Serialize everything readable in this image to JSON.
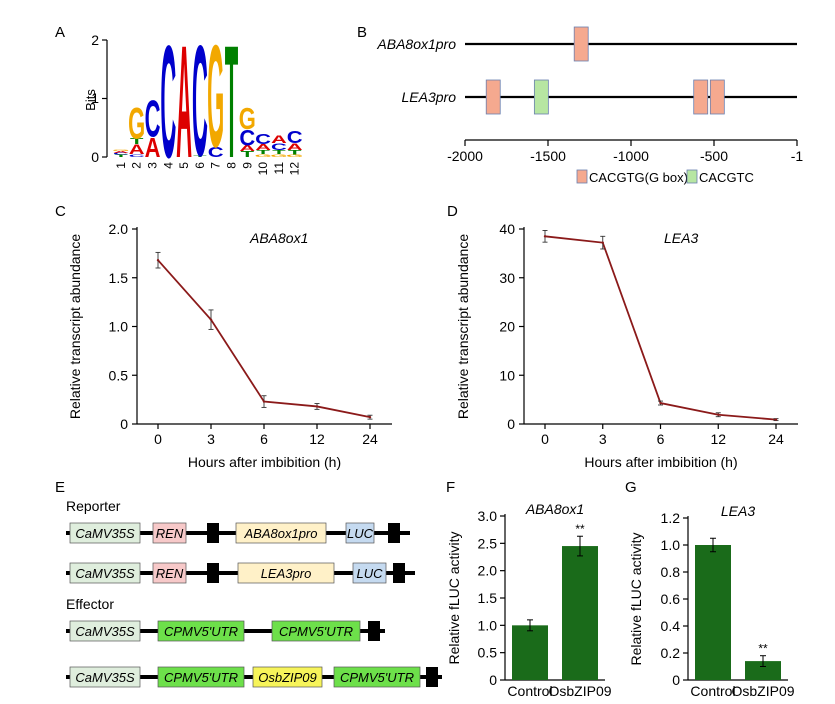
{
  "panels": {
    "A": {
      "letter": "A",
      "ylabel": "Bits",
      "yticks": [
        "0",
        "1",
        "2"
      ],
      "positions": [
        "1",
        "2",
        "3",
        "4",
        "5",
        "6",
        "7",
        "8",
        "9",
        "10",
        "11",
        "12"
      ],
      "motif": [
        {
          "pos": 1,
          "stack": [
            [
              "T",
              0.04
            ],
            [
              "C",
              0.03
            ],
            [
              "A",
              0.03
            ],
            [
              "G",
              0.02
            ]
          ]
        },
        {
          "pos": 2,
          "stack": [
            [
              "C",
              0.05
            ],
            [
              "A",
              0.17
            ],
            [
              "T",
              0.1
            ],
            [
              "G",
              0.55
            ]
          ]
        },
        {
          "pos": 3,
          "stack": [
            [
              "A",
              0.35
            ],
            [
              "C",
              0.65
            ]
          ]
        },
        {
          "pos": 4,
          "stack": [
            [
              "C",
              2.0
            ]
          ]
        },
        {
          "pos": 5,
          "stack": [
            [
              "A",
              2.0
            ]
          ]
        },
        {
          "pos": 6,
          "stack": [
            [
              "T",
              0.03
            ],
            [
              "C",
              1.97
            ]
          ]
        },
        {
          "pos": 7,
          "stack": [
            [
              "C",
              0.18
            ],
            [
              "G",
              1.82
            ]
          ]
        },
        {
          "pos": 8,
          "stack": [
            [
              "T",
              2.0
            ]
          ]
        },
        {
          "pos": 9,
          "stack": [
            [
              "T",
              0.1
            ],
            [
              "A",
              0.1
            ],
            [
              "C",
              0.28
            ],
            [
              "G",
              0.38
            ]
          ]
        },
        {
          "pos": 10,
          "stack": [
            [
              "G",
              0.05
            ],
            [
              "T",
              0.07
            ],
            [
              "A",
              0.1
            ],
            [
              "C",
              0.18
            ]
          ]
        },
        {
          "pos": 11,
          "stack": [
            [
              "G",
              0.05
            ],
            [
              "T",
              0.07
            ],
            [
              "C",
              0.12
            ],
            [
              "A",
              0.14
            ]
          ]
        },
        {
          "pos": 12,
          "stack": [
            [
              "G",
              0.04
            ],
            [
              "T",
              0.08
            ],
            [
              "A",
              0.12
            ],
            [
              "C",
              0.22
            ]
          ]
        }
      ],
      "colors": {
        "A": "#dd0000",
        "C": "#0000cc",
        "G": "#f2a800",
        "T": "#008000"
      }
    },
    "B": {
      "letter": "B",
      "rows": [
        {
          "label": "ABA8ox1pro",
          "boxes": [
            {
              "pos": -1300,
              "kind": "g"
            }
          ]
        },
        {
          "label": "LEA3pro",
          "boxes": [
            {
              "pos": -1830,
              "kind": "g"
            },
            {
              "pos": -1540,
              "kind": "c"
            },
            {
              "pos": -580,
              "kind": "g"
            },
            {
              "pos": -480,
              "kind": "g"
            }
          ]
        }
      ],
      "ticks": [
        "-2000",
        "-1500",
        "-1000",
        "-500",
        "-1"
      ],
      "legend": [
        {
          "kind": "g",
          "label": "CACGTG(G box)"
        },
        {
          "kind": "c",
          "label": "CACGTC"
        }
      ],
      "colors": {
        "g": "#f5a98f",
        "c": "#b7e6a2"
      }
    },
    "E": {
      "letter": "E",
      "reporter_title": "Reporter",
      "effector_title": "Effector",
      "reporter1": [
        "CaMV35S",
        "REN",
        "ABA8ox1pro",
        "LUC"
      ],
      "reporter2": [
        "CaMV35S",
        "REN",
        "LEA3pro",
        "LUC"
      ],
      "effector1": [
        "CaMV35S",
        "CPMV5'UTR",
        "CPMV5'UTR"
      ],
      "effector2": [
        "CaMV35S",
        "CPMV5'UTR",
        "OsbZIP09",
        "CPMV5'UTR"
      ]
    }
  },
  "chart_data": [
    {
      "panel": "C",
      "type": "line",
      "title": "ABA8ox1",
      "xlabel": "Hours after imbibition (h)",
      "ylabel": "Relative transcript abundance",
      "categories": [
        "0",
        "3",
        "6",
        "12",
        "24"
      ],
      "values": [
        1.68,
        1.07,
        0.23,
        0.18,
        0.07
      ],
      "errors": [
        0.08,
        0.1,
        0.06,
        0.03,
        0.02
      ],
      "yticks": [
        "0",
        "0.5",
        "1.0",
        "1.5",
        "2.0"
      ],
      "ylim": [
        0,
        2.0
      ],
      "color": "#8b1a1a"
    },
    {
      "panel": "D",
      "type": "line",
      "title": "LEA3",
      "xlabel": "Hours after imbibition (h)",
      "ylabel": "Relative transcript abundance",
      "categories": [
        "0",
        "3",
        "6",
        "12",
        "24"
      ],
      "values": [
        38.5,
        37.2,
        4.3,
        1.9,
        0.9
      ],
      "errors": [
        1.2,
        1.3,
        0.4,
        0.4,
        0.2
      ],
      "yticks": [
        "0",
        "10",
        "20",
        "30",
        "40"
      ],
      "ylim": [
        0,
        40
      ],
      "color": "#8b1a1a"
    },
    {
      "panel": "F",
      "type": "bar",
      "title": "ABA8ox1",
      "ylabel": "Relative fLUC activity",
      "categories": [
        "Control",
        "OsbZIP09"
      ],
      "values": [
        1.0,
        2.45
      ],
      "errors": [
        0.1,
        0.18
      ],
      "marks": [
        "",
        "**"
      ],
      "yticks": [
        "0",
        "0.5",
        "1.0",
        "1.5",
        "2.0",
        "2.5",
        "3.0"
      ],
      "ylim": [
        0,
        3.0
      ],
      "color": "#1a6b1a"
    },
    {
      "panel": "G",
      "type": "bar",
      "title": "LEA3",
      "ylabel": "Relative fLUC activity",
      "categories": [
        "Control",
        "OsbZIP09"
      ],
      "values": [
        1.0,
        0.14
      ],
      "errors": [
        0.05,
        0.04
      ],
      "marks": [
        "",
        "**"
      ],
      "yticks": [
        "0",
        "0.2",
        "0.4",
        "0.6",
        "0.8",
        "1.0",
        "1.2"
      ],
      "ylim": [
        0,
        1.2
      ],
      "color": "#1a6b1a"
    }
  ]
}
